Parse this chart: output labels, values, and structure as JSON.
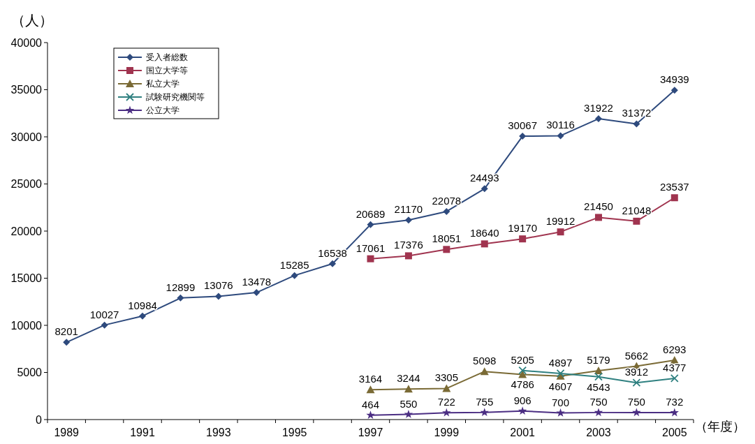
{
  "chart_data": {
    "type": "line",
    "ylabel": "（人）",
    "xlabel": "（年度）",
    "categories": [
      "1989",
      null,
      "1991",
      null,
      "1993",
      null,
      "1995",
      null,
      "1997",
      null,
      "1999",
      null,
      "2001",
      null,
      "2003",
      null,
      "2005"
    ],
    "ylim": [
      0,
      40000
    ],
    "yticks": [
      0,
      5000,
      10000,
      15000,
      20000,
      25000,
      30000,
      35000,
      40000
    ],
    "grid": false,
    "legend": "top left",
    "data_labels": true,
    "line_style": "solid",
    "series": [
      {
        "name": "受入者総数",
        "color": "#2e4a7d",
        "marker": "diamond",
        "values": [
          8201,
          10027,
          10984,
          12899,
          13076,
          13478,
          15285,
          16538,
          20689,
          21170,
          22078,
          24493,
          30067,
          30116,
          31922,
          31372,
          34939
        ]
      },
      {
        "name": "国立大学等",
        "color": "#a0344f",
        "marker": "square",
        "values": [
          null,
          null,
          null,
          null,
          null,
          null,
          null,
          null,
          17061,
          17376,
          18051,
          18640,
          19170,
          19912,
          21450,
          21048,
          23537
        ]
      },
      {
        "name": "私立大学",
        "color": "#7a6a35",
        "marker": "triangle",
        "values": [
          null,
          null,
          null,
          null,
          null,
          null,
          null,
          null,
          3164,
          3244,
          3305,
          5098,
          4786,
          4607,
          5179,
          5662,
          6293
        ]
      },
      {
        "name": "試験研究機関等",
        "color": "#2f8080",
        "marker": "cross",
        "values": [
          null,
          null,
          null,
          null,
          null,
          null,
          null,
          null,
          null,
          null,
          null,
          null,
          5205,
          4897,
          4543,
          3912,
          4377
        ]
      },
      {
        "name": "公立大学",
        "color": "#4b2e83",
        "marker": "star",
        "values": [
          null,
          null,
          null,
          null,
          null,
          null,
          null,
          null,
          464,
          550,
          722,
          755,
          906,
          700,
          750,
          750,
          732
        ]
      }
    ]
  }
}
